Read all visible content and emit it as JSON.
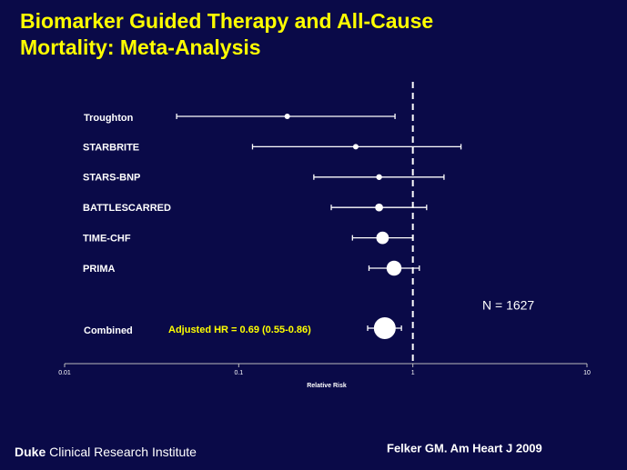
{
  "chart_data": {
    "type": "forest",
    "title": [
      "Biomarker Guided Therapy and All-Cause",
      "Mortality: Meta-Analysis"
    ],
    "x_label": "Relative Risk",
    "categories": [
      "Troughton",
      "STARBRITE",
      "STARS-BNP",
      "BATTLESCARRED",
      "TIME-CHF",
      "PRIMA",
      "Combined"
    ],
    "values": [
      0.19,
      0.47,
      0.64,
      0.64,
      0.67,
      0.78,
      0.69
    ],
    "lower": [
      0.044,
      0.12,
      0.27,
      0.34,
      0.45,
      0.56,
      0.55
    ],
    "upper": [
      0.79,
      1.89,
      1.51,
      1.2,
      1.0,
      1.09,
      0.86
    ],
    "color": "#ffffff",
    "log_x": true,
    "xlim": [
      0.01,
      10
    ],
    "xticks": [
      0.01,
      0.1,
      1,
      10
    ],
    "reference_line": 1,
    "annotations": [
      "Adjusted HR = 0.69 (0.55-0.86)",
      "N = 1627"
    ]
  },
  "footer": {
    "brand": "Duke",
    "institute": "Clinical Research Institute",
    "citation": "Felker GM. Am Heart J 2009"
  }
}
